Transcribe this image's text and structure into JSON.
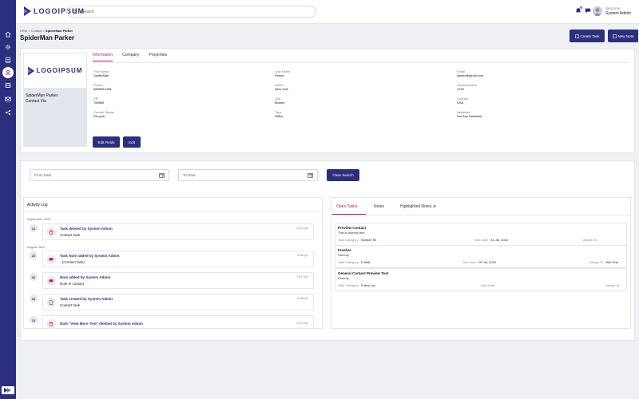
{
  "colors": {
    "brand": "#2b2f7e",
    "accent": "#c2185b",
    "badge": "#e94b6f"
  },
  "sidebar": {
    "items": [
      {
        "icon": "home-icon"
      },
      {
        "icon": "gear-icon"
      },
      {
        "icon": "clipboard-icon"
      },
      {
        "icon": "user-icon"
      },
      {
        "icon": "layers-icon"
      },
      {
        "icon": "mail-icon"
      },
      {
        "icon": "share-icon"
      }
    ]
  },
  "header": {
    "logo_text": "LOGOIPSUM",
    "search_placeholder": "Search",
    "welcome_label": "Welcome",
    "user_name": "System Admin"
  },
  "breadcrumb": {
    "part1": "CRM",
    "sep": " > ",
    "part2": "Contact",
    "part3": "SpiderMan Parker"
  },
  "page_title": "SpiderMan Parker",
  "actions": {
    "create_task": "Create Task",
    "new_note": "New Note"
  },
  "contact": {
    "logo_text": "LOGOIPSUM",
    "name": "SpiderMan Parker",
    "subtitle": "Contact Via"
  },
  "tabs": {
    "information": "Information",
    "company": "Company",
    "properties": "Properties"
  },
  "fields": {
    "first_name": {
      "label": "First Name",
      "value": "SpiderMan"
    },
    "last_name": {
      "label": "Last Name",
      "value": "Parker"
    },
    "email": {
      "label": "Email",
      "value": "spider@gmail.com"
    },
    "phone": {
      "label": "Phone",
      "value": "5895551408"
    },
    "street": {
      "label": "Street",
      "value": "New York"
    },
    "housenumber": {
      "label": "Housenumber",
      "value": "1234"
    },
    "zip": {
      "label": "ZIP",
      "value": "789589"
    },
    "city": {
      "label": "City",
      "value": "Boston"
    },
    "country": {
      "label": "Country",
      "value": "USA"
    },
    "status": {
      "label": "Current Status",
      "value": "Recycle"
    },
    "type": {
      "label": "Type",
      "value": "Office"
    },
    "assistant": {
      "label": "Assistant",
      "value": "Not Any Assistant"
    }
  },
  "card_buttons": {
    "edit_fields": "Edit Fields",
    "edit": "Edit"
  },
  "filters": {
    "from_placeholder": "From Date",
    "to_placeholder": "To Date",
    "clear": "Clear Search"
  },
  "activity": {
    "title": "Activity Log",
    "months": [
      "September 2022",
      "August 2022"
    ],
    "entries": [
      {
        "day": "12",
        "title": "Task deleted by System Admin",
        "desc": "Contact task",
        "time": "01:21 pm",
        "icon": "trash-icon"
      },
      {
        "day": "26",
        "title": "Task Note added by System Admin",
        "desc": "- (Contact task)",
        "time": "12:56 pm",
        "icon": "chat-icon"
      },
      {
        "day": "26",
        "title": "Note added by System Admin",
        "desc": "Note in contact",
        "time": "12:57 pm",
        "icon": "chat-icon"
      },
      {
        "day": "26",
        "title": "Task created by System Admin",
        "desc": "Contact task",
        "time": "12:56 pm",
        "icon": "file-icon"
      },
      {
        "day": "12",
        "title": "Note \"View More Test\" deleted by System Admin",
        "desc": "",
        "time": "04:21 am",
        "icon": "trash-icon"
      }
    ]
  },
  "task_tabs": {
    "open": "Open Tasks",
    "notes": "Notes",
    "highlighted": "Highlighted Notes",
    "star": "★"
  },
  "task_labels": {
    "category": "Task Category :",
    "due": "Due Date :",
    "assign": "Assign To :"
  },
  "tasks": [
    {
      "title": "Preview Contact",
      "desc": "This is dummy test",
      "category": "Sample Kit",
      "due": "31 Jul, 2022",
      "assign": ""
    },
    {
      "title": "Fresher",
      "desc": "Dummy",
      "category": "E-Mail",
      "due": "09 Jul, 2022",
      "assign": "Add Test"
    },
    {
      "title": "General Contact Preview Test",
      "desc": "Dummy",
      "category": "Follow Up",
      "due": "",
      "assign": ""
    }
  ]
}
